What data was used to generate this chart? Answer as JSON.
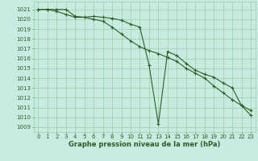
{
  "line1": [
    1021,
    1021,
    1020.8,
    1020.5,
    1020.2,
    1020.2,
    1020.3,
    1020.2,
    1020.1,
    1019.9,
    1019.5,
    1019.2,
    1015.3,
    1009.3,
    1016.7,
    1016.3,
    1015.5,
    1014.8,
    1014.4,
    1014.1,
    1013.5,
    1013.0,
    1011.2,
    1010.7
  ],
  "line2": [
    1021,
    1021,
    1021,
    1021,
    1020.3,
    1020.2,
    1020.0,
    1019.8,
    1019.2,
    1018.5,
    1017.8,
    1017.2,
    1016.8,
    1016.5,
    1016.1,
    1015.7,
    1015.0,
    1014.5,
    1014.0,
    1013.2,
    1012.5,
    1011.8,
    1011.2,
    1010.2
  ],
  "x": [
    0,
    1,
    2,
    3,
    4,
    5,
    6,
    7,
    8,
    9,
    10,
    11,
    12,
    13,
    14,
    15,
    16,
    17,
    18,
    19,
    20,
    21,
    22,
    23
  ],
  "line_color": "#2d6020",
  "bg_color": "#c8eae0",
  "grid_color": "#88cc99",
  "ylabel_ticks": [
    1009,
    1010,
    1011,
    1012,
    1013,
    1014,
    1015,
    1016,
    1017,
    1018,
    1019,
    1020,
    1021
  ],
  "xlabel": "Graphe pression niveau de la mer (hPa)",
  "ylim": [
    1008.5,
    1021.8
  ],
  "xlim": [
    -0.5,
    23.5
  ],
  "tick_fontsize": 5.0,
  "xlabel_fontsize": 6.0
}
